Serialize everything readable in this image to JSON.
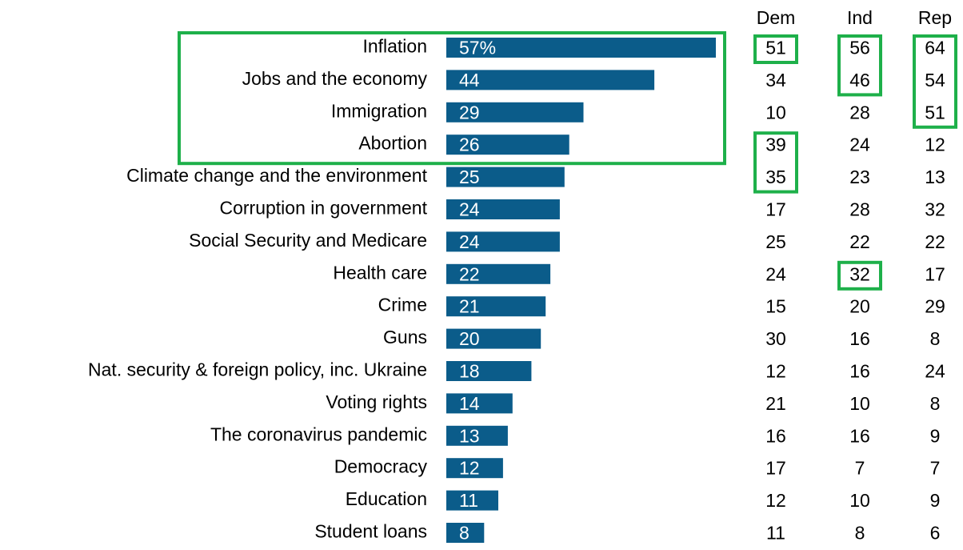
{
  "colors": {
    "bar": "#0b5c8a",
    "highlight": "#1eb04a",
    "text": "#000000",
    "bar_text": "#ffffff"
  },
  "chart_data": {
    "type": "bar",
    "orientation": "horizontal",
    "title": "",
    "xlabel": "",
    "ylabel": "",
    "xlim": [
      0,
      57
    ],
    "grid": false,
    "categories": [
      "Inflation",
      "Jobs and the economy",
      "Immigration",
      "Abortion",
      "Climate change and the environment",
      "Corruption in government",
      "Social Security and Medicare",
      "Health care",
      "Crime",
      "Guns",
      "Nat. security & foreign policy, inc. Ukraine",
      "Voting rights",
      "The coronavirus pandemic",
      "Democracy",
      "Education",
      "Student loans"
    ],
    "values": [
      57,
      44,
      29,
      26,
      25,
      24,
      24,
      22,
      21,
      20,
      18,
      14,
      13,
      12,
      11,
      8
    ],
    "bar_labels": [
      "57%",
      "44",
      "29",
      "26",
      "25",
      "24",
      "24",
      "22",
      "21",
      "20",
      "18",
      "14",
      "13",
      "12",
      "11",
      "8"
    ],
    "table": {
      "columns": [
        "Dem",
        "Ind",
        "Rep"
      ],
      "rows": [
        [
          51,
          56,
          64
        ],
        [
          34,
          46,
          54
        ],
        [
          10,
          28,
          51
        ],
        [
          39,
          24,
          12
        ],
        [
          35,
          23,
          13
        ],
        [
          17,
          28,
          32
        ],
        [
          25,
          22,
          22
        ],
        [
          24,
          32,
          17
        ],
        [
          15,
          20,
          29
        ],
        [
          30,
          16,
          8
        ],
        [
          12,
          16,
          24
        ],
        [
          21,
          10,
          8
        ],
        [
          16,
          16,
          9
        ],
        [
          17,
          7,
          7
        ],
        [
          12,
          10,
          9
        ],
        [
          11,
          8,
          6
        ]
      ]
    },
    "highlights": {
      "categories_top": 4,
      "table_groups": [
        {
          "column": "Dem",
          "from_row": 0,
          "to_row": 0
        },
        {
          "column": "Dem",
          "from_row": 3,
          "to_row": 4
        },
        {
          "column": "Ind",
          "from_row": 0,
          "to_row": 1
        },
        {
          "column": "Ind",
          "from_row": 7,
          "to_row": 7
        },
        {
          "column": "Rep",
          "from_row": 0,
          "to_row": 2
        }
      ]
    }
  }
}
